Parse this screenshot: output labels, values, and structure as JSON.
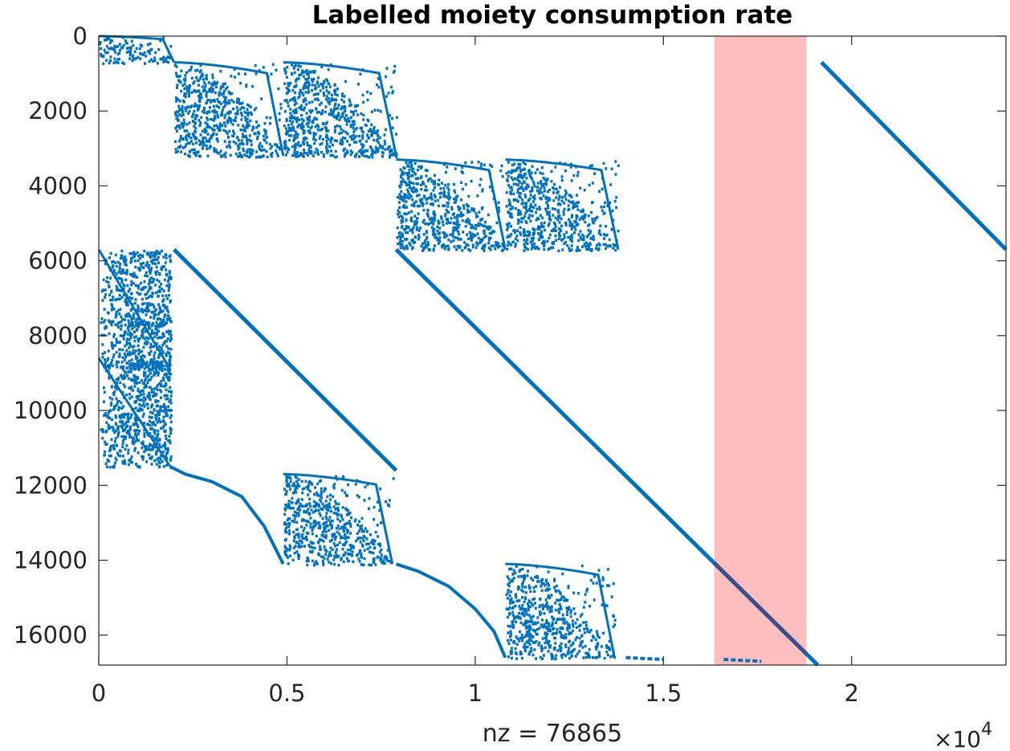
{
  "chart_data": {
    "type": "scatter",
    "title": "Labelled moiety consumption rate",
    "xlabel": "nz = 76865",
    "ylabel": "",
    "x_exponent_label": "×10",
    "x_exponent_power": "4",
    "xlim": [
      0,
      24100
    ],
    "ylim": [
      16800,
      0
    ],
    "y_reversed": true,
    "grid": false,
    "x_ticks": [
      0,
      5000,
      10000,
      15000,
      20000
    ],
    "x_tick_labels": [
      "0",
      "0.5",
      "1",
      "1.5",
      "2"
    ],
    "y_ticks": [
      0,
      2000,
      4000,
      6000,
      8000,
      10000,
      12000,
      14000,
      16000
    ],
    "y_tick_labels": [
      "0",
      "2000",
      "4000",
      "6000",
      "8000",
      "10000",
      "12000",
      "14000",
      "16000"
    ],
    "marker_color": "#0072bd",
    "highlight_band": {
      "x_range": [
        16350,
        18800
      ],
      "color": "#ffbfbf"
    },
    "diagonals": [
      {
        "x": [
          2000,
          7900
        ],
        "y": [
          5700,
          11600
        ]
      },
      {
        "x": [
          7900,
          19100
        ],
        "y": [
          5700,
          16800
        ]
      },
      {
        "x": [
          19200,
          24100
        ],
        "y": [
          700,
          5700
        ]
      }
    ],
    "dense_blocks": [
      {
        "x": [
          0,
          2000
        ],
        "y": [
          0,
          700
        ]
      },
      {
        "x": [
          2000,
          4900
        ],
        "y": [
          700,
          3200
        ]
      },
      {
        "x": [
          4900,
          7900
        ],
        "y": [
          700,
          3200
        ]
      },
      {
        "x": [
          7900,
          10800
        ],
        "y": [
          3300,
          5700
        ]
      },
      {
        "x": [
          10800,
          13800
        ],
        "y": [
          3300,
          5700
        ]
      },
      {
        "x": [
          0,
          1900
        ],
        "y": [
          5700,
          8900
        ]
      },
      {
        "x": [
          0,
          1900
        ],
        "y": [
          8600,
          11500
        ]
      },
      {
        "x": [
          4900,
          7800
        ],
        "y": [
          11700,
          14100
        ]
      },
      {
        "x": [
          10800,
          13700
        ],
        "y": [
          14100,
          16600
        ]
      }
    ],
    "curves": [
      {
        "x": [
          1900,
          2300,
          3000,
          3800,
          4400,
          4900
        ],
        "y": [
          11500,
          11700,
          11900,
          12300,
          13100,
          14100
        ]
      },
      {
        "x": [
          7900,
          8500,
          9300,
          10000,
          10500,
          10800
        ],
        "y": [
          14100,
          14300,
          14700,
          15300,
          15900,
          16600
        ]
      }
    ],
    "small_runs": [
      {
        "x": [
          14000,
          15000
        ],
        "y": [
          16600,
          16650
        ]
      },
      {
        "x": [
          16600,
          17600
        ],
        "y": [
          16650,
          16700
        ]
      }
    ]
  }
}
